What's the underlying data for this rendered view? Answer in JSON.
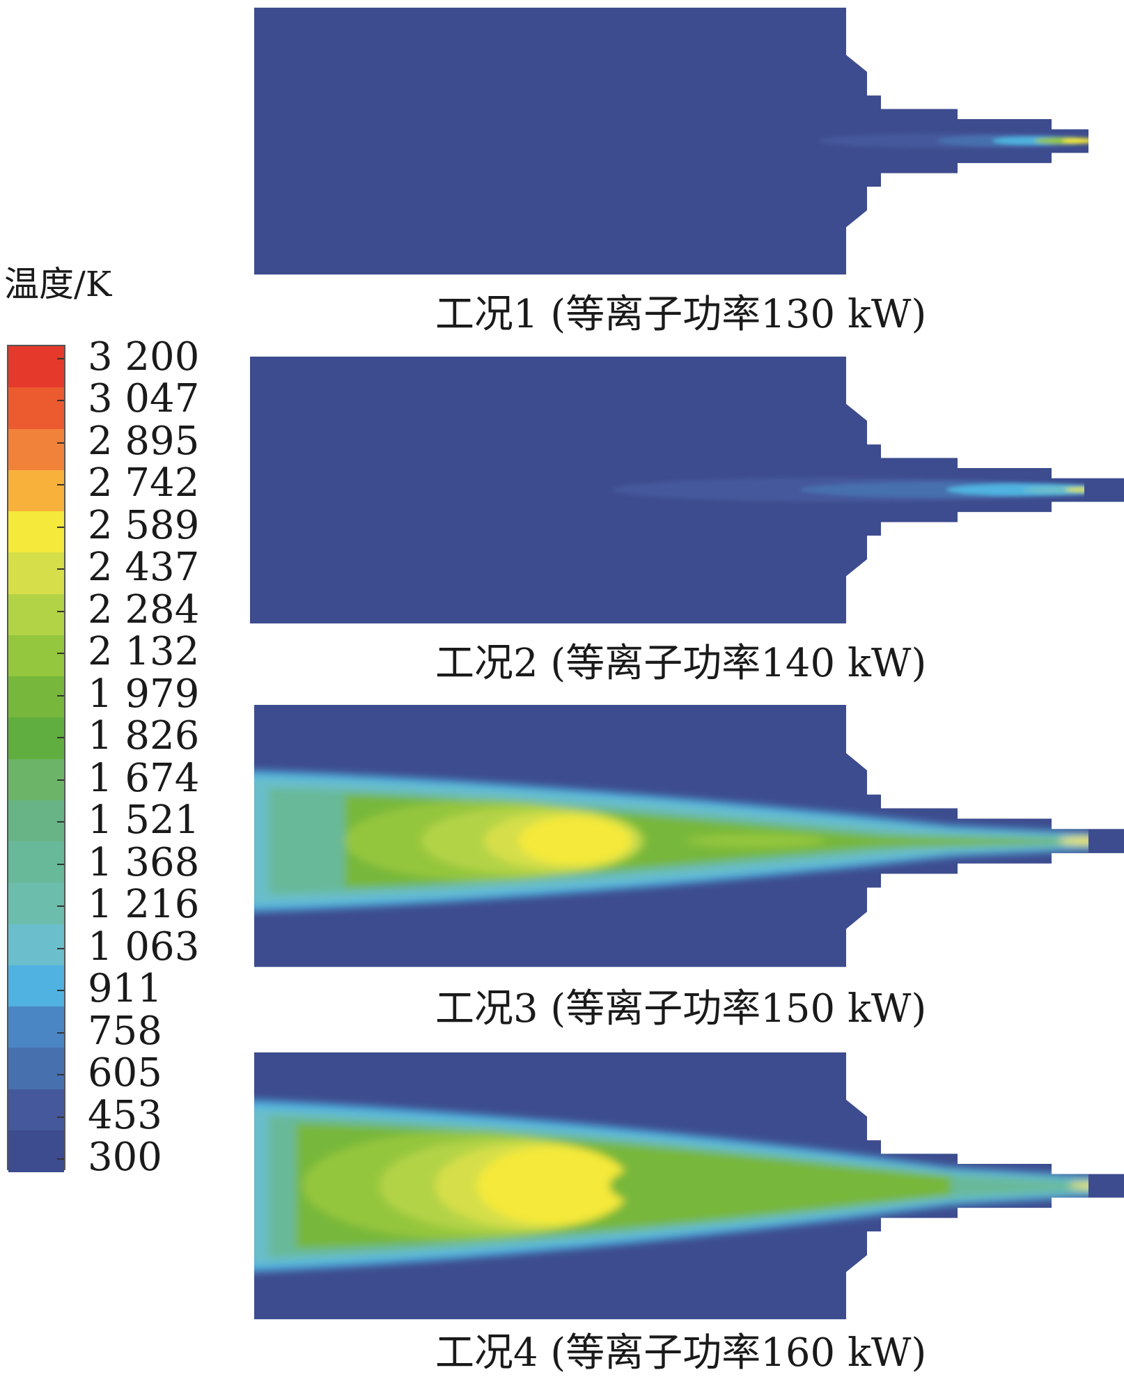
{
  "legend": {
    "title": "温度/K",
    "ticks": [
      "3 200",
      "3 047",
      "2 895",
      "2 742",
      "2 589",
      "2 437",
      "2 284",
      "2 132",
      "1 979",
      "1 826",
      "1 674",
      "1 521",
      "1 368",
      "1 216",
      "1 063",
      "911",
      "758",
      "605",
      "453",
      "300"
    ],
    "colors": [
      "#e5392b",
      "#ec5a2f",
      "#f1823a",
      "#f8b23c",
      "#f5e93b",
      "#d6df4a",
      "#b3d347",
      "#94c63e",
      "#77b73b",
      "#5fae3f",
      "#6cb568",
      "#68b486",
      "#67b99a",
      "#6cbdab",
      "#6bbecb",
      "#4fb2e0",
      "#4b86c4",
      "#4770ae",
      "#45589b",
      "#3d4c8e"
    ],
    "background_color": "#3d4c8e"
  },
  "cases": [
    {
      "label": "工况1 (等离子功率130 kW)",
      "power_kw": 130
    },
    {
      "label": "工况2 (等离子功率140 kW)",
      "power_kw": 140
    },
    {
      "label": "工况3 (等离子功率150 kW)",
      "power_kw": 150
    },
    {
      "label": "工况4 (等离子功率160 kW)",
      "power_kw": 160
    }
  ]
}
